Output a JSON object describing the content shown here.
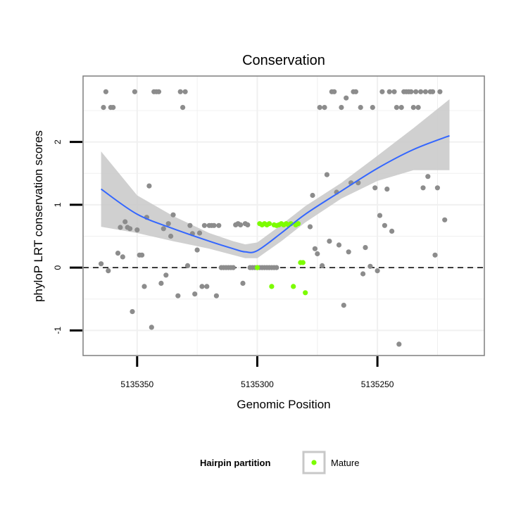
{
  "chart_data": {
    "type": "scatter",
    "title": "Conservation",
    "xlabel": "Genomic Position",
    "ylabel": "phyloP LRT conservation scores",
    "x_reversed": true,
    "xlim": [
      5135372.5,
      5135205.5
    ],
    "ylim": [
      -1.4,
      3.05
    ],
    "x_ticks": [
      5135350,
      5135300,
      5135250
    ],
    "x_tick_labels": [
      "5135350",
      "5135300",
      "5135250"
    ],
    "y_ticks": [
      -1,
      0,
      1,
      2
    ],
    "y_tick_labels": [
      "-1",
      "0",
      "1",
      "2"
    ],
    "grid": true,
    "reference_line": {
      "y": 0,
      "style": "dashed"
    },
    "colors": {
      "other": "#8c8c8c",
      "mature": "#7cfc00",
      "smooth_line": "#3366ff",
      "ribbon": "#c8c8c8"
    },
    "legend": {
      "title": "Hairpin partition",
      "position": "bottom",
      "entries": [
        {
          "label": "Mature",
          "color": "#7cfc00"
        }
      ]
    },
    "series": [
      {
        "name": "",
        "color": "#8c8c8c",
        "points": [
          [
            5135365,
            0.06
          ],
          [
            5135364,
            2.55
          ],
          [
            5135363,
            2.8
          ],
          [
            5135362,
            -0.05
          ],
          [
            5135361,
            2.55
          ],
          [
            5135360,
            2.55
          ],
          [
            5135358,
            0.23
          ],
          [
            5135357,
            0.64
          ],
          [
            5135356,
            0.17
          ],
          [
            5135355,
            0.73
          ],
          [
            5135354,
            0.64
          ],
          [
            5135353,
            0.62
          ],
          [
            5135352,
            -0.7
          ],
          [
            5135351,
            2.8
          ],
          [
            5135350,
            0.6
          ],
          [
            5135349,
            0.2
          ],
          [
            5135348,
            0.2
          ],
          [
            5135347,
            -0.3
          ],
          [
            5135346,
            0.8
          ],
          [
            5135345,
            1.3
          ],
          [
            5135344,
            -0.95
          ],
          [
            5135343,
            2.8
          ],
          [
            5135342,
            2.8
          ],
          [
            5135341,
            2.8
          ],
          [
            5135340,
            -0.25
          ],
          [
            5135339,
            0.62
          ],
          [
            5135338,
            -0.12
          ],
          [
            5135337,
            0.7
          ],
          [
            5135336,
            0.5
          ],
          [
            5135335,
            0.84
          ],
          [
            5135333,
            -0.45
          ],
          [
            5135332,
            2.8
          ],
          [
            5135331,
            2.55
          ],
          [
            5135330,
            2.8
          ],
          [
            5135329,
            0.03
          ],
          [
            5135328,
            0.67
          ],
          [
            5135327,
            0.54
          ],
          [
            5135326,
            -0.42
          ],
          [
            5135325,
            0.28
          ],
          [
            5135324,
            0.55
          ],
          [
            5135323,
            -0.3
          ],
          [
            5135322,
            0.67
          ],
          [
            5135321,
            -0.3
          ],
          [
            5135320,
            0.67
          ],
          [
            5135319,
            0.67
          ],
          [
            5135318,
            0.67
          ],
          [
            5135317,
            -0.45
          ],
          [
            5135316,
            0.67
          ],
          [
            5135315,
            0.0
          ],
          [
            5135314,
            0.0
          ],
          [
            5135313,
            0.0
          ],
          [
            5135312,
            0.0
          ],
          [
            5135311,
            0.0
          ],
          [
            5135310,
            0.0
          ],
          [
            5135309,
            0.68
          ],
          [
            5135308,
            0.7
          ],
          [
            5135307,
            0.68
          ],
          [
            5135306,
            -0.25
          ],
          [
            5135305,
            0.7
          ],
          [
            5135304,
            0.68
          ],
          [
            5135303,
            0.0
          ],
          [
            5135302,
            0.0
          ],
          [
            5135301,
            0.0
          ],
          [
            5135300,
            0.0
          ],
          [
            5135299,
            0.0
          ],
          [
            5135298,
            0.0
          ],
          [
            5135297,
            0.0
          ],
          [
            5135296,
            0.0
          ],
          [
            5135295,
            0.0
          ],
          [
            5135294,
            0.0
          ],
          [
            5135293,
            0.0
          ],
          [
            5135292,
            0.0
          ],
          [
            5135278,
            0.65
          ],
          [
            5135277,
            1.15
          ],
          [
            5135276,
            0.3
          ],
          [
            5135275,
            0.22
          ],
          [
            5135274,
            2.55
          ],
          [
            5135273,
            0.03
          ],
          [
            5135272,
            2.55
          ],
          [
            5135271,
            1.48
          ],
          [
            5135270,
            0.42
          ],
          [
            5135269,
            2.8
          ],
          [
            5135268,
            2.8
          ],
          [
            5135267,
            1.2
          ],
          [
            5135266,
            0.36
          ],
          [
            5135265,
            2.55
          ],
          [
            5135264,
            -0.6
          ],
          [
            5135263,
            2.7
          ],
          [
            5135262,
            0.25
          ],
          [
            5135261,
            1.35
          ],
          [
            5135260,
            2.8
          ],
          [
            5135259,
            2.8
          ],
          [
            5135258,
            1.35
          ],
          [
            5135257,
            2.55
          ],
          [
            5135256,
            -0.1
          ],
          [
            5135255,
            0.32
          ],
          [
            5135253,
            0.02
          ],
          [
            5135252,
            2.55
          ],
          [
            5135251,
            1.27
          ],
          [
            5135250,
            -0.05
          ],
          [
            5135249,
            0.83
          ],
          [
            5135248,
            2.8
          ],
          [
            5135247,
            0.67
          ],
          [
            5135246,
            1.25
          ],
          [
            5135245,
            2.8
          ],
          [
            5135244,
            0.58
          ],
          [
            5135243,
            2.8
          ],
          [
            5135242,
            2.55
          ],
          [
            5135241,
            -1.22
          ],
          [
            5135240,
            2.55
          ],
          [
            5135239,
            2.8
          ],
          [
            5135238,
            2.8
          ],
          [
            5135237,
            2.8
          ],
          [
            5135236,
            2.8
          ],
          [
            5135235,
            2.55
          ],
          [
            5135234,
            2.8
          ],
          [
            5135233,
            2.55
          ],
          [
            5135232,
            2.8
          ],
          [
            5135231,
            1.27
          ],
          [
            5135230,
            2.8
          ],
          [
            5135229,
            1.45
          ],
          [
            5135228,
            2.8
          ],
          [
            5135227,
            2.8
          ],
          [
            5135226,
            0.2
          ],
          [
            5135225,
            1.27
          ],
          [
            5135224,
            2.8
          ],
          [
            5135222,
            0.76
          ]
        ]
      },
      {
        "name": "Mature",
        "color": "#7cfc00",
        "points": [
          [
            5135300,
            0.0
          ],
          [
            5135299,
            0.7
          ],
          [
            5135298,
            0.68
          ],
          [
            5135297,
            0.7
          ],
          [
            5135296,
            0.68
          ],
          [
            5135295,
            0.7
          ],
          [
            5135294,
            -0.3
          ],
          [
            5135293,
            0.68
          ],
          [
            5135292,
            0.67
          ],
          [
            5135291,
            0.68
          ],
          [
            5135290,
            0.7
          ],
          [
            5135289,
            0.68
          ],
          [
            5135288,
            0.7
          ],
          [
            5135287,
            0.68
          ],
          [
            5135286,
            0.7
          ],
          [
            5135285,
            -0.3
          ],
          [
            5135284,
            0.68
          ],
          [
            5135283,
            0.7
          ],
          [
            5135282,
            0.08
          ],
          [
            5135281,
            0.08
          ],
          [
            5135280,
            -0.4
          ]
        ]
      }
    ],
    "smooth": {
      "x": [
        5135365,
        5135350,
        5135335,
        5135320,
        5135310,
        5135305,
        5135300,
        5135290,
        5135280,
        5135265,
        5135250,
        5135235,
        5135220
      ],
      "y": [
        1.25,
        0.85,
        0.62,
        0.42,
        0.3,
        0.25,
        0.27,
        0.55,
        0.85,
        1.22,
        1.58,
        1.88,
        2.1
      ],
      "lower": [
        0.65,
        0.55,
        0.42,
        0.3,
        0.2,
        0.15,
        0.15,
        0.42,
        0.72,
        1.1,
        1.38,
        1.55,
        1.55
      ],
      "upper": [
        1.85,
        1.15,
        0.82,
        0.55,
        0.42,
        0.37,
        0.4,
        0.68,
        0.98,
        1.35,
        1.78,
        2.22,
        2.68
      ]
    }
  }
}
